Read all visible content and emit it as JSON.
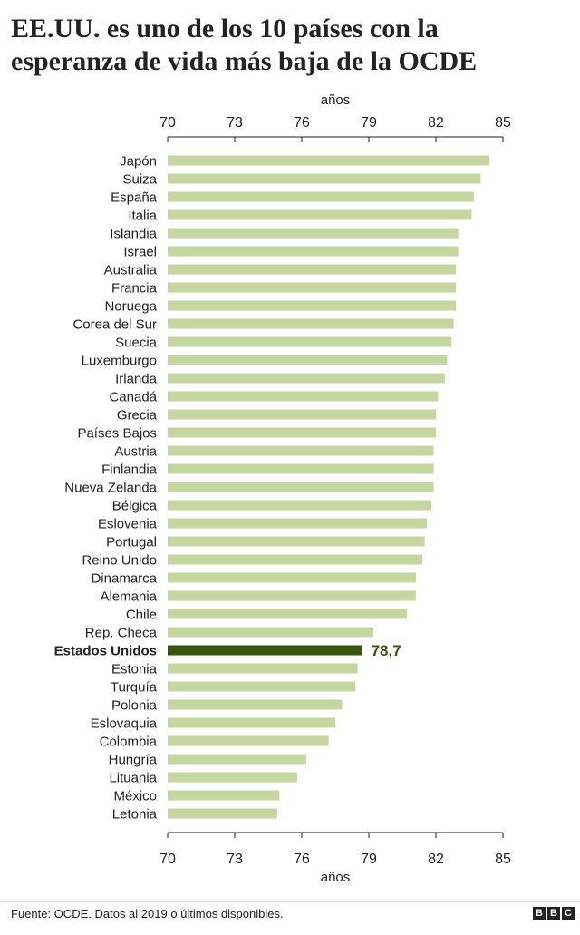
{
  "chart_data": {
    "type": "bar",
    "orientation": "horizontal",
    "title_lines": [
      "EE.UU. es uno de los 10 países con la",
      "esperanza de vida más baja de la OCDE"
    ],
    "xlabel": "años",
    "xlim": [
      70,
      85
    ],
    "ticks": [
      70,
      73,
      76,
      79,
      82,
      85
    ],
    "highlight_category": "Estados Unidos",
    "highlight_label": "78,7",
    "categories": [
      "Japón",
      "Suiza",
      "España",
      "Italia",
      "Islandia",
      "Israel",
      "Australia",
      "Francia",
      "Noruega",
      "Corea del Sur",
      "Suecia",
      "Luxemburgo",
      "Irlanda",
      "Canadá",
      "Grecia",
      "Países Bajos",
      "Austria",
      "Finlandia",
      "Nueva Zelanda",
      "Bélgica",
      "Eslovenia",
      "Portugal",
      "Reino Unido",
      "Dinamarca",
      "Alemania",
      "Chile",
      "Rep. Checa",
      "Estados Unidos",
      "Estonia",
      "Turquía",
      "Polonia",
      "Eslovaquia",
      "Colombia",
      "Hungría",
      "Lituania",
      "México",
      "Letonia"
    ],
    "values": [
      84.4,
      84.0,
      83.7,
      83.6,
      83.0,
      83.0,
      82.9,
      82.9,
      82.9,
      82.8,
      82.7,
      82.5,
      82.4,
      82.1,
      82.0,
      82.0,
      81.9,
      81.9,
      81.9,
      81.8,
      81.6,
      81.5,
      81.4,
      81.1,
      81.1,
      80.7,
      79.2,
      78.7,
      78.5,
      78.4,
      77.8,
      77.5,
      77.2,
      76.2,
      75.8,
      75.0,
      74.9
    ]
  },
  "colors": {
    "bar": "#c6d6a0",
    "bar_highlight": "#3a5410",
    "label_highlight": "#3a5410",
    "axis": "#222222",
    "text": "#222222"
  },
  "footer": {
    "source": "Fuente: OCDE. Datos al 2019 o últimos disponibles.",
    "logo_letters": [
      "B",
      "B",
      "C"
    ]
  }
}
